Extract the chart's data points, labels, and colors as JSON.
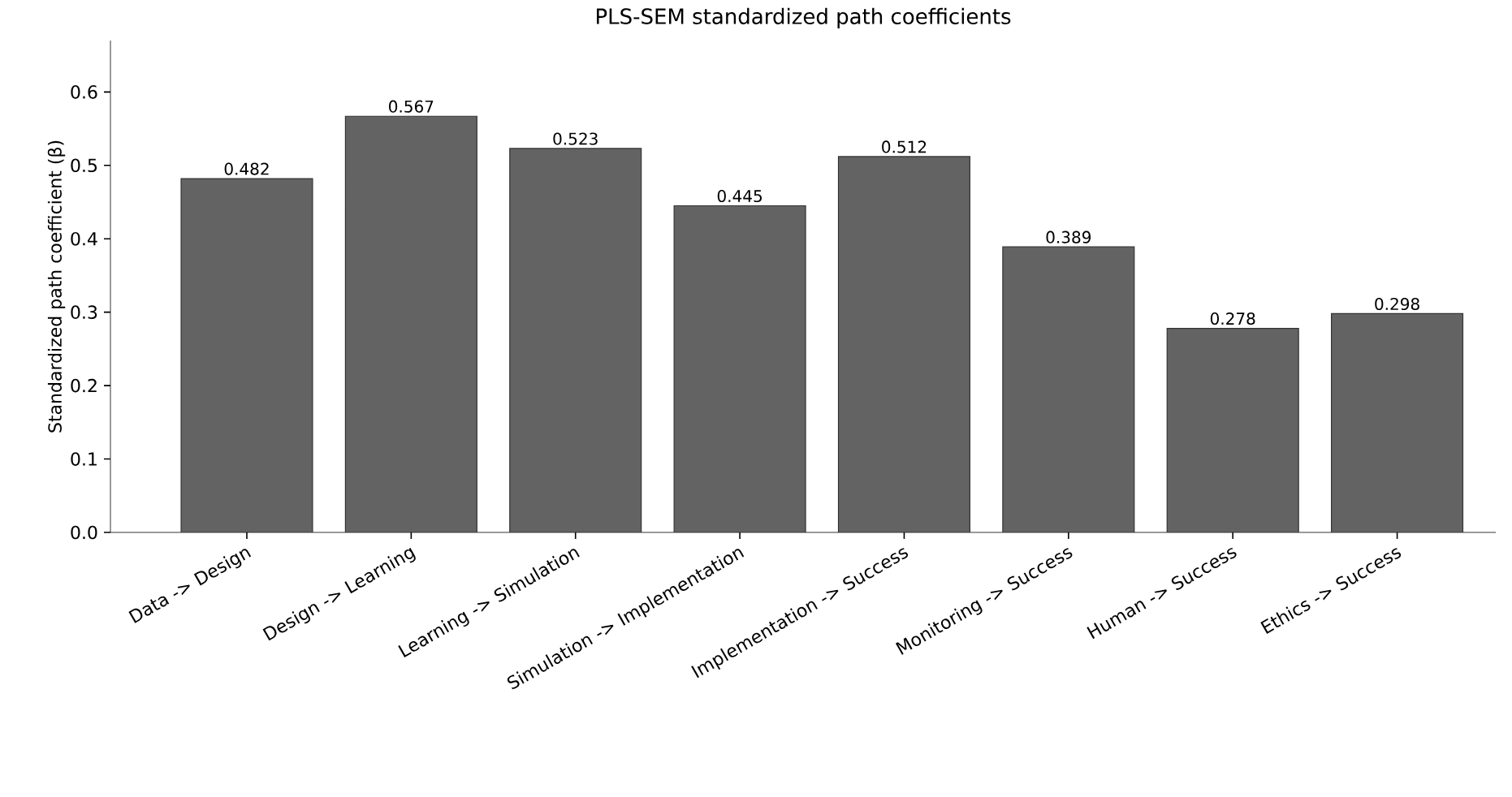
{
  "chart_data": {
    "type": "bar",
    "title": "PLS-SEM standardized path coefficients",
    "ylabel": "Standardized path coefficient (β)",
    "categories": [
      "Data -> Design",
      "Design -> Learning",
      "Learning -> Simulation",
      "Simulation -> Implementation",
      "Implementation -> Success",
      "Monitoring -> Success",
      "Human -> Success",
      "Ethics -> Success"
    ],
    "values": [
      0.482,
      0.567,
      0.523,
      0.445,
      0.512,
      0.389,
      0.278,
      0.298
    ],
    "color": "#636363",
    "data_labels": true,
    "grid": false,
    "ylim": [
      0,
      0.67
    ],
    "yticks": [
      {
        "value": 0,
        "label": "0.0"
      },
      {
        "value": 0.1,
        "label": "0.1"
      },
      {
        "value": 0.2,
        "label": "0.2"
      },
      {
        "value": 0.3,
        "label": "0.3"
      },
      {
        "value": 0.4,
        "label": "0.4"
      },
      {
        "value": 0.5,
        "label": "0.5"
      },
      {
        "value": 0.6,
        "label": "0.6"
      }
    ]
  }
}
